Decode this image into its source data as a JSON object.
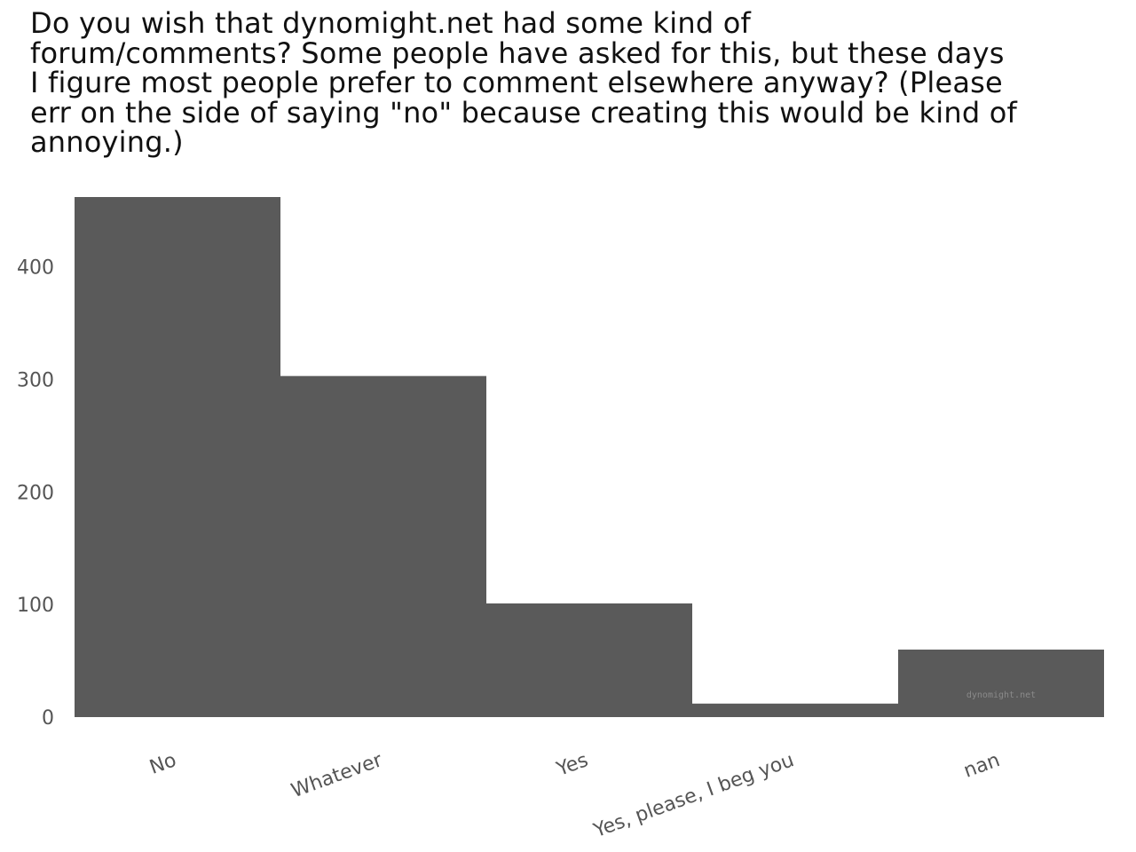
{
  "chart_data": {
    "type": "bar",
    "title": "Do you wish that dynomight.net had some kind of\nforum/comments? Some people have asked for this, but these days\nI figure most people prefer to comment elsewhere anyway? (Please\nerr on the side of saying \"no\" because creating this would be kind of\nannoying.)",
    "categories": [
      "No",
      "Whatever",
      "Yes",
      "Yes, please, I beg you",
      "nan"
    ],
    "values": [
      462,
      303,
      101,
      12,
      60
    ],
    "yticks": [
      0,
      100,
      200,
      300,
      400
    ],
    "ylim": [
      0,
      462
    ],
    "xlabel": "",
    "ylabel": "",
    "grid": false,
    "bar_color": "#5a5a5a",
    "watermark": "dynomight.net"
  }
}
